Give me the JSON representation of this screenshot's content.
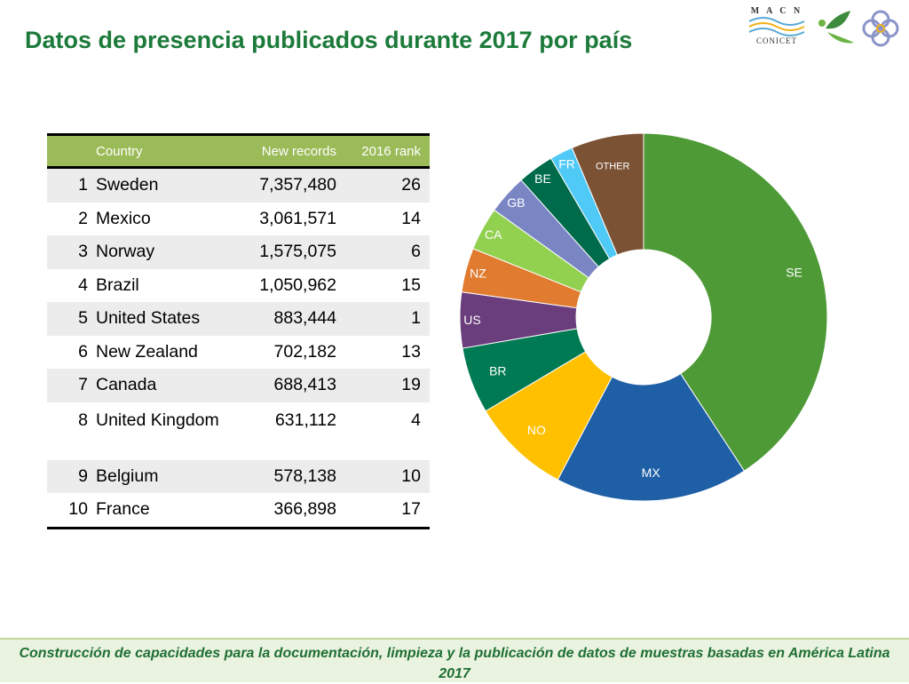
{
  "slide": {
    "title": "Datos de presencia publicados durante 2017 por país",
    "footer": "Construcción de capacidades para la documentación, limpieza y la publicación de datos de muestras basadas en América Latina 2017"
  },
  "logos": {
    "macn_conicet": {
      "top_text": "M A C N",
      "bottom_text": "CONICET"
    }
  },
  "table": {
    "headers": {
      "rank": "",
      "country": "Country",
      "new_records": "New records",
      "rank_2016": "2016 rank"
    },
    "rows": [
      {
        "rank": "1",
        "country": "Sweden",
        "new_records": "7,357,480",
        "rank_2016": "26"
      },
      {
        "rank": "2",
        "country": "Mexico",
        "new_records": "3,061,571",
        "rank_2016": "14"
      },
      {
        "rank": "3",
        "country": "Norway",
        "new_records": "1,575,075",
        "rank_2016": "6"
      },
      {
        "rank": "4",
        "country": "Brazil",
        "new_records": "1,050,962",
        "rank_2016": "15"
      },
      {
        "rank": "5",
        "country": "United States",
        "new_records": "883,444",
        "rank_2016": "1"
      },
      {
        "rank": "6",
        "country": "New Zealand",
        "new_records": "702,182",
        "rank_2016": "13"
      },
      {
        "rank": "7",
        "country": "Canada",
        "new_records": "688,413",
        "rank_2016": "19"
      },
      {
        "rank": "8",
        "country": "United Kingdom",
        "new_records": "631,112",
        "rank_2016": "4"
      },
      {
        "rank": "9",
        "country": "Belgium",
        "new_records": "578,138",
        "rank_2016": "10"
      },
      {
        "rank": "10",
        "country": "France",
        "new_records": "366,898",
        "rank_2016": "17"
      }
    ]
  },
  "chart_data": {
    "type": "pie",
    "variant": "donut",
    "categories": [
      "SE",
      "MX",
      "NO",
      "BR",
      "US",
      "NZ",
      "CA",
      "GB",
      "BE",
      "FR",
      "OTHER"
    ],
    "values": [
      7357480,
      3061571,
      1575075,
      1050962,
      883444,
      702182,
      688413,
      631112,
      578138,
      366898,
      1150000
    ],
    "colors": [
      "#4e9a37",
      "#1f5fa6",
      "#ffc000",
      "#007a52",
      "#6a3d7c",
      "#e07b2f",
      "#92d050",
      "#7a86c4",
      "#006b4b",
      "#4fc9f5",
      "#7b5234"
    ],
    "start_angle_deg": 0,
    "legend": "none",
    "labels_on_slices": true
  }
}
